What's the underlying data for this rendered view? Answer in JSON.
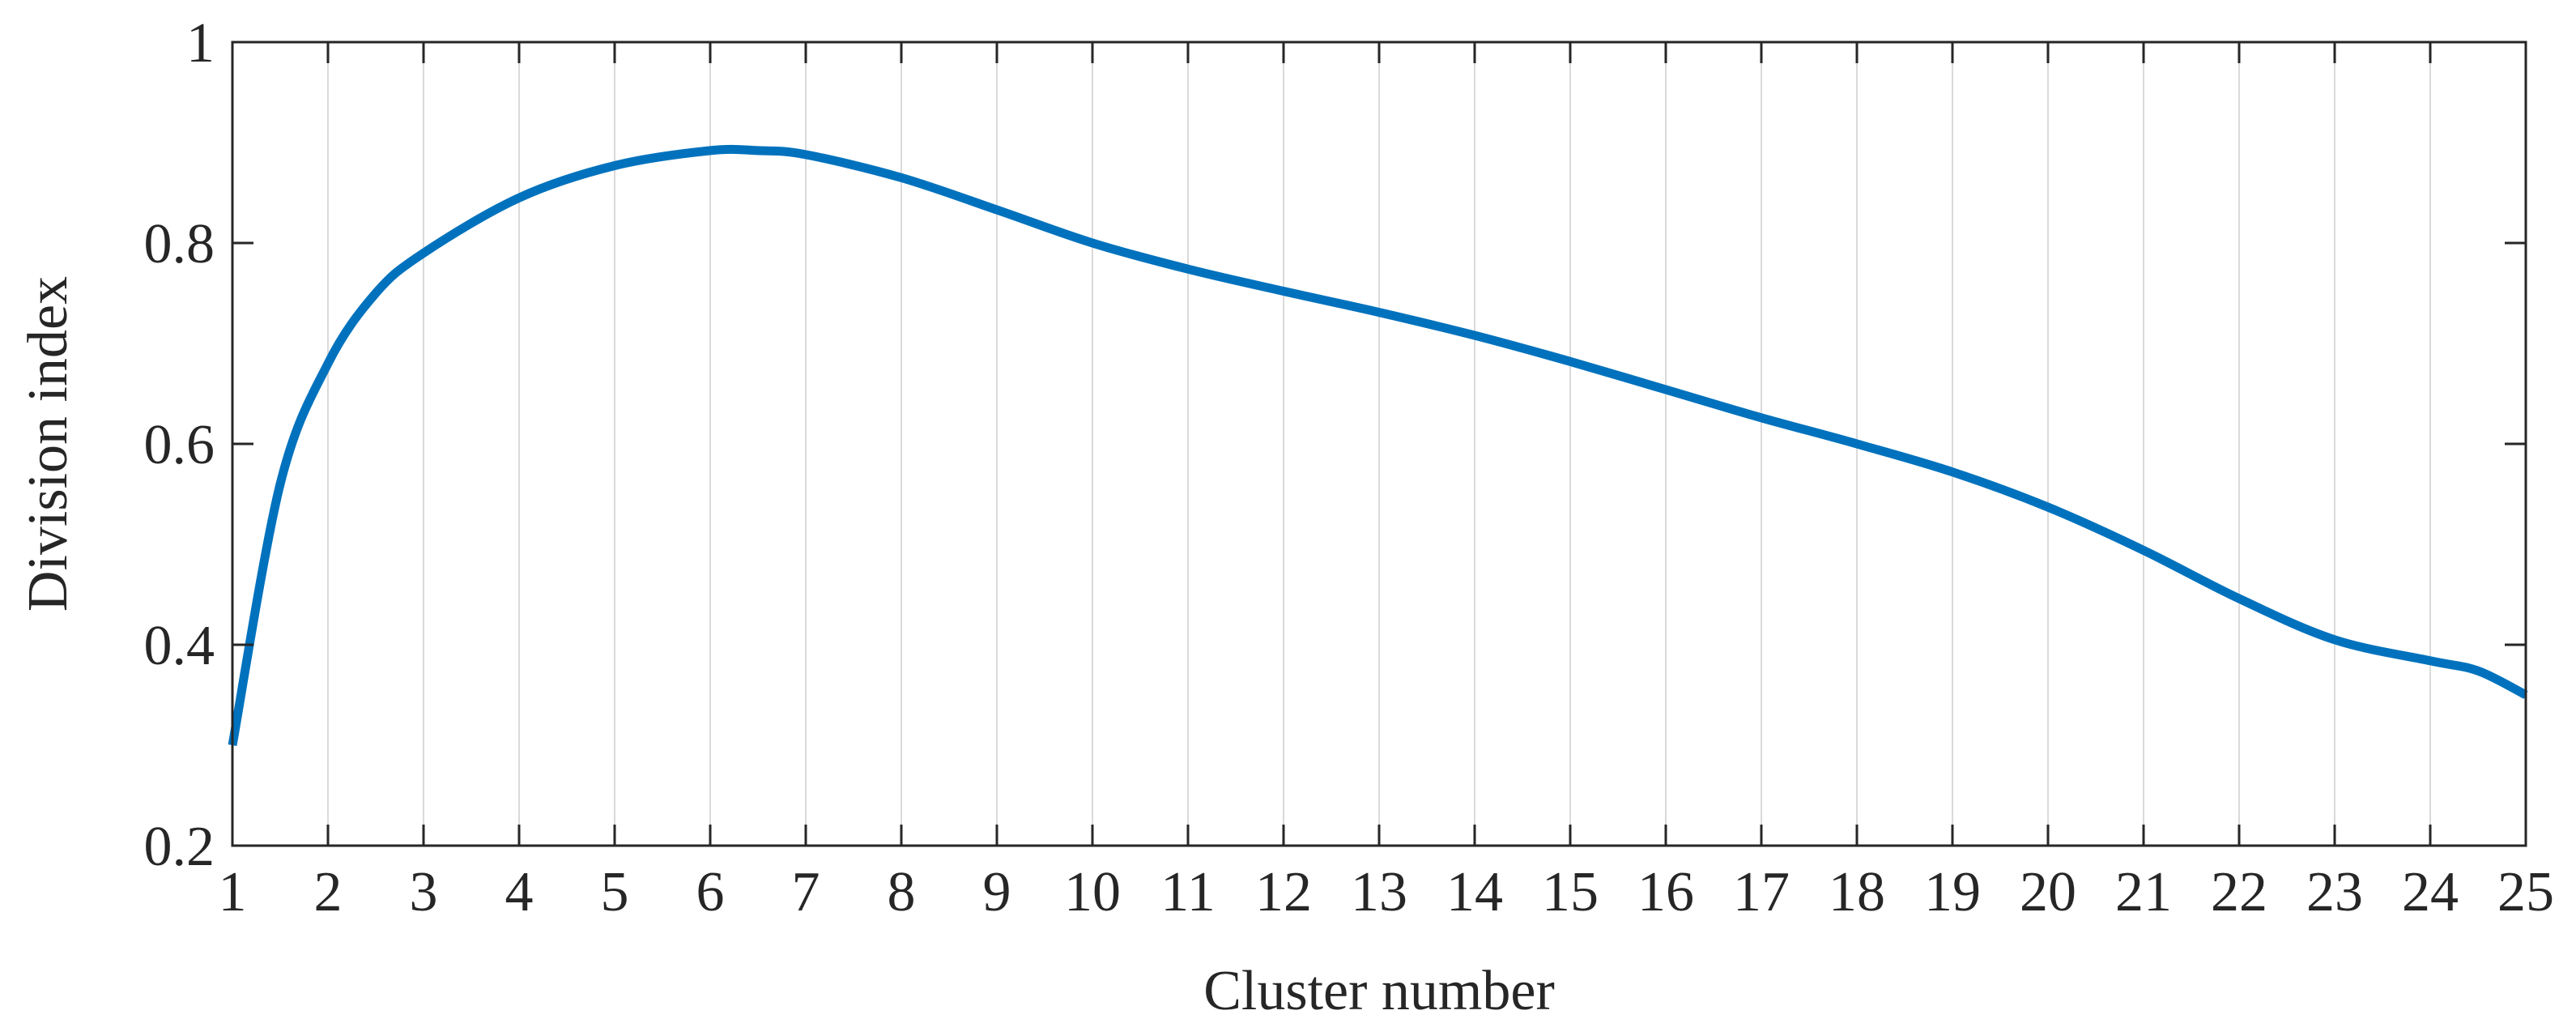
{
  "chart_data": {
    "type": "line",
    "title": "",
    "xlabel": "Cluster number",
    "ylabel": "Division index",
    "xlim": [
      1,
      25
    ],
    "ylim": [
      0.2,
      1
    ],
    "x_ticks": [
      1,
      2,
      3,
      4,
      5,
      6,
      7,
      8,
      9,
      10,
      11,
      12,
      13,
      14,
      15,
      16,
      17,
      18,
      19,
      20,
      21,
      22,
      23,
      24,
      25
    ],
    "x_tick_labels": [
      "1",
      "2",
      "3",
      "4",
      "5",
      "6",
      "7",
      "8",
      "9",
      "10",
      "11",
      "12",
      "13",
      "14",
      "15",
      "16",
      "17",
      "18",
      "19",
      "20",
      "21",
      "22",
      "23",
      "24",
      "25"
    ],
    "y_ticks": [
      0.2,
      0.4,
      0.6,
      0.8,
      1.0
    ],
    "y_tick_labels": [
      "0.2",
      "0.4",
      "0.6",
      "0.8",
      "1"
    ],
    "grid": "vertical",
    "line_color": "#0072BD",
    "grid_color": "#DADADA",
    "axis_color": "#262626",
    "series": [
      {
        "x": [
          1,
          1.5,
          2,
          2.5,
          3,
          4,
          5,
          6,
          6.5,
          7,
          8,
          9,
          10,
          11,
          12,
          13,
          14,
          15,
          16,
          17,
          18,
          19,
          20,
          21,
          22,
          23,
          24,
          24.5,
          25
        ],
        "values": [
          0.3,
          0.56,
          0.68,
          0.75,
          0.79,
          0.845,
          0.877,
          0.892,
          0.892,
          0.888,
          0.865,
          0.833,
          0.8,
          0.774,
          0.752,
          0.731,
          0.708,
          0.682,
          0.654,
          0.626,
          0.6,
          0.572,
          0.537,
          0.494,
          0.446,
          0.405,
          0.384,
          0.374,
          0.35
        ]
      }
    ]
  }
}
